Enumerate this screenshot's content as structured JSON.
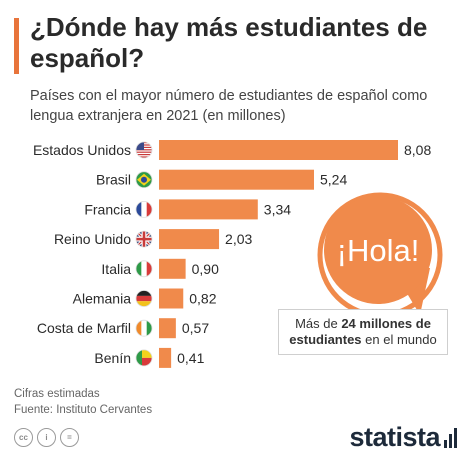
{
  "title": "¿Dónde hay más estudiantes de español?",
  "subtitle": "Países con el mayor número de estudiantes de español como lengua extranjera en 2021 (en millones)",
  "bubble_text": "¡Hola!",
  "callout": {
    "prefix": "Más de ",
    "highlight": "24 millones de estudiantes",
    "suffix": " en el mundo"
  },
  "notes": {
    "estimate": "Cifras estimadas",
    "source": "Fuente: Instituto Cervantes"
  },
  "brand": "statista",
  "colors": {
    "bar": "#f08a4b",
    "accent": "#e8743b",
    "text": "#2b2b2b"
  },
  "chart_data": {
    "type": "bar",
    "orientation": "horizontal",
    "categories": [
      "Estados Unidos",
      "Brasil",
      "Francia",
      "Reino Unido",
      "Italia",
      "Alemania",
      "Costa de Marfil",
      "Benín"
    ],
    "values": [
      8.08,
      5.24,
      3.34,
      2.03,
      0.9,
      0.82,
      0.57,
      0.41
    ],
    "value_labels": [
      "8,08",
      "5,24",
      "3,34",
      "2,03",
      "0,90",
      "0,82",
      "0,57",
      "0,41"
    ],
    "flags": [
      "flag-us",
      "flag-br",
      "flag-fr",
      "flag-gb",
      "flag-it",
      "flag-de",
      "flag-ci",
      "flag-bj"
    ],
    "xlim": [
      0,
      8.08
    ],
    "grid": false,
    "legend": "none"
  }
}
